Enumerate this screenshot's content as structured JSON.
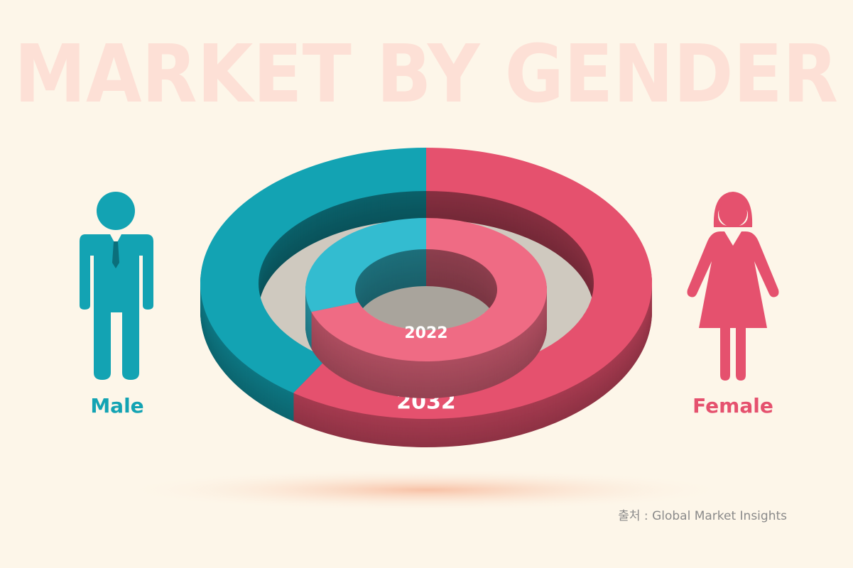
{
  "title": "MARKET BY GENDER",
  "source": "출처 : Global Market Insights",
  "chart_data": {
    "type": "donut",
    "categories": [
      "Male",
      "Female"
    ],
    "series": [
      {
        "name": "2032",
        "values": [
          40,
          60
        ],
        "colors": [
          "#13a3b3",
          "#e5516e"
        ]
      },
      {
        "name": "2022",
        "values": [
          30,
          70
        ],
        "colors": [
          "#33bcd0",
          "#ef6b84"
        ]
      }
    ]
  }
}
